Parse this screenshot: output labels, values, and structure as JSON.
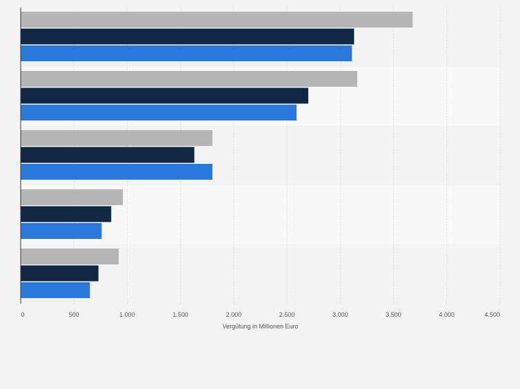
{
  "chart_data": {
    "type": "bar",
    "orientation": "horizontal",
    "categories": [
      "",
      "",
      "",
      "",
      ""
    ],
    "series": [
      {
        "values": [
          3680,
          3160,
          1800,
          960,
          920
        ]
      },
      {
        "values": [
          3130,
          2700,
          1630,
          850,
          730
        ]
      },
      {
        "values": [
          3110,
          2590,
          1800,
          760,
          650
        ]
      }
    ],
    "series_colors": [
      "#b5b5b5",
      "#0f2742",
      "#2a78d9"
    ],
    "xlim": [
      0,
      4500
    ],
    "ticks": [
      0,
      500,
      1000,
      1500,
      2000,
      2500,
      3000,
      3500,
      4000,
      4500
    ],
    "tick_labels": [
      "0",
      "500",
      "1.000",
      "1.500",
      "2.000",
      "2.500",
      "3.000",
      "3.500",
      "4.000",
      "4.500"
    ],
    "xlabel": "Vergütung in Millionen Euro",
    "ylabel": "",
    "title": "",
    "grid": true,
    "legend": "none"
  }
}
